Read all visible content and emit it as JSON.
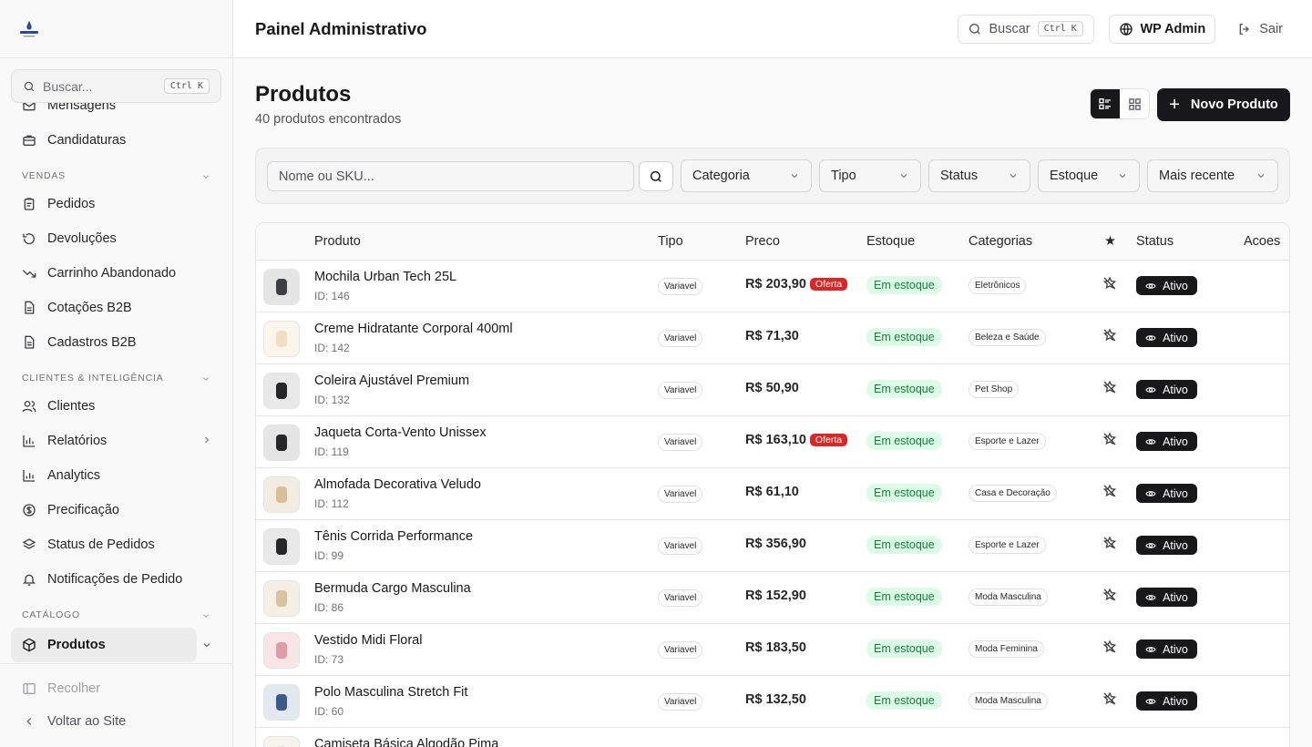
{
  "sidebar": {
    "search_placeholder": "Buscar...",
    "search_shortcut": "Ctrl K",
    "items_top": [
      {
        "label": "Mensagens",
        "icon": "mail-icon"
      },
      {
        "label": "Candidaturas",
        "icon": "briefcase-icon"
      }
    ],
    "section_vendas": "VENDAS",
    "items_vendas": [
      {
        "label": "Pedidos",
        "icon": "clipboard-icon"
      },
      {
        "label": "Devoluções",
        "icon": "rotate-ccw-icon"
      },
      {
        "label": "Carrinho Abandonado",
        "icon": "trend-down-icon"
      },
      {
        "label": "Cotações B2B",
        "icon": "file-text-icon"
      },
      {
        "label": "Cadastros B2B",
        "icon": "file-text-icon"
      }
    ],
    "section_clientes": "CLIENTES & INTELIGÊNCIA",
    "items_clientes": [
      {
        "label": "Clientes",
        "icon": "users-icon"
      },
      {
        "label": "Relatórios",
        "icon": "bar-chart-icon"
      },
      {
        "label": "Analytics",
        "icon": "bar-chart-icon"
      },
      {
        "label": "Precificação",
        "icon": "dollar-circle-icon"
      },
      {
        "label": "Status de Pedidos",
        "icon": "layers-icon"
      },
      {
        "label": "Notificações de Pedido",
        "icon": "bell-icon"
      }
    ],
    "section_catalogo": "CATÁLOGO",
    "active_item": {
      "label": "Produtos",
      "icon": "package-icon"
    },
    "collapse_label": "Recolher",
    "back_label": "Voltar ao Site"
  },
  "topbar": {
    "title": "Painel Administrativo",
    "search_label": "Buscar",
    "search_shortcut": "Ctrl K",
    "wp_admin_label": "WP Admin",
    "logout_label": "Sair"
  },
  "page": {
    "title": "Produtos",
    "subtitle": "40 produtos encontrados",
    "new_product_label": "Novo Produto"
  },
  "filters": {
    "search_placeholder": "Nome ou SKU...",
    "selects": [
      "Categoria",
      "Tipo",
      "Status",
      "Estoque",
      "Mais recente"
    ]
  },
  "table": {
    "headers": {
      "produto": "Produto",
      "tipo": "Tipo",
      "preco": "Preco",
      "estoque": "Estoque",
      "categorias": "Categorias",
      "destaque": "★",
      "status": "Status",
      "acoes": "Acoes"
    },
    "rows": [
      {
        "name": "Mochila Urban Tech 25L",
        "id": "ID: 146",
        "tipo": "Variavel",
        "price": "R$ 203,90",
        "offer": "Oferta",
        "stock": "Em estoque",
        "category": "Eletrônicos",
        "status": "Ativo",
        "thumb_color": "#3f3f46",
        "thumb_bg": "#e5e5e5"
      },
      {
        "name": "Creme Hidratante Corporal 400ml",
        "id": "ID: 142",
        "tipo": "Variavel",
        "price": "R$ 71,30",
        "offer": "",
        "stock": "Em estoque",
        "category": "Beleza e Saúde",
        "status": "Ativo",
        "thumb_color": "#f0dfc4",
        "thumb_bg": "#fbf5ec"
      },
      {
        "name": "Coleira Ajustável Premium",
        "id": "ID: 132",
        "tipo": "Variavel",
        "price": "R$ 50,90",
        "offer": "",
        "stock": "Em estoque",
        "category": "Pet Shop",
        "status": "Ativo",
        "thumb_color": "#27272a",
        "thumb_bg": "#e8e8e8"
      },
      {
        "name": "Jaqueta Corta-Vento Unissex",
        "id": "ID: 119",
        "tipo": "Variavel",
        "price": "R$ 163,10",
        "offer": "Oferta",
        "stock": "Em estoque",
        "category": "Esporte e Lazer",
        "status": "Ativo",
        "thumb_color": "#27272a",
        "thumb_bg": "#e5e5e5"
      },
      {
        "name": "Almofada Decorativa Veludo",
        "id": "ID: 112",
        "tipo": "Variavel",
        "price": "R$ 61,10",
        "offer": "",
        "stock": "Em estoque",
        "category": "Casa e Decoração",
        "status": "Ativo",
        "thumb_color": "#d9bf98",
        "thumb_bg": "#f3ece2"
      },
      {
        "name": "Tênis Corrida Performance",
        "id": "ID: 99",
        "tipo": "Variavel",
        "price": "R$ 356,90",
        "offer": "",
        "stock": "Em estoque",
        "category": "Esporte e Lazer",
        "status": "Ativo",
        "thumb_color": "#27272a",
        "thumb_bg": "#e8e8e8"
      },
      {
        "name": "Bermuda Cargo Masculina",
        "id": "ID: 86",
        "tipo": "Variavel",
        "price": "R$ 152,90",
        "offer": "",
        "stock": "Em estoque",
        "category": "Moda Masculina",
        "status": "Ativo",
        "thumb_color": "#d9c29f",
        "thumb_bg": "#f5efe6"
      },
      {
        "name": "Vestido Midi Floral",
        "id": "ID: 73",
        "tipo": "Variavel",
        "price": "R$ 183,50",
        "offer": "",
        "stock": "Em estoque",
        "category": "Moda Feminina",
        "status": "Ativo",
        "thumb_color": "#e29aa6",
        "thumb_bg": "#f8e5e8"
      },
      {
        "name": "Polo Masculina Stretch Fit",
        "id": "ID: 60",
        "tipo": "Variavel",
        "price": "R$ 132,50",
        "offer": "",
        "stock": "Em estoque",
        "category": "Moda Masculina",
        "status": "Ativo",
        "thumb_color": "#3b5a8a",
        "thumb_bg": "#e3e8f0"
      },
      {
        "name": "Camiseta Básica Algodão Pima",
        "id": "",
        "tipo": "",
        "price": "",
        "offer": "",
        "stock": "",
        "category": "",
        "status": "",
        "thumb_color": "#e8e2d6",
        "thumb_bg": "#f7f4ee"
      }
    ]
  },
  "colors": {
    "accent": "#18181b",
    "offer": "#dc2626",
    "stock_bg": "#dcfce7",
    "stock_text": "#15803d"
  }
}
